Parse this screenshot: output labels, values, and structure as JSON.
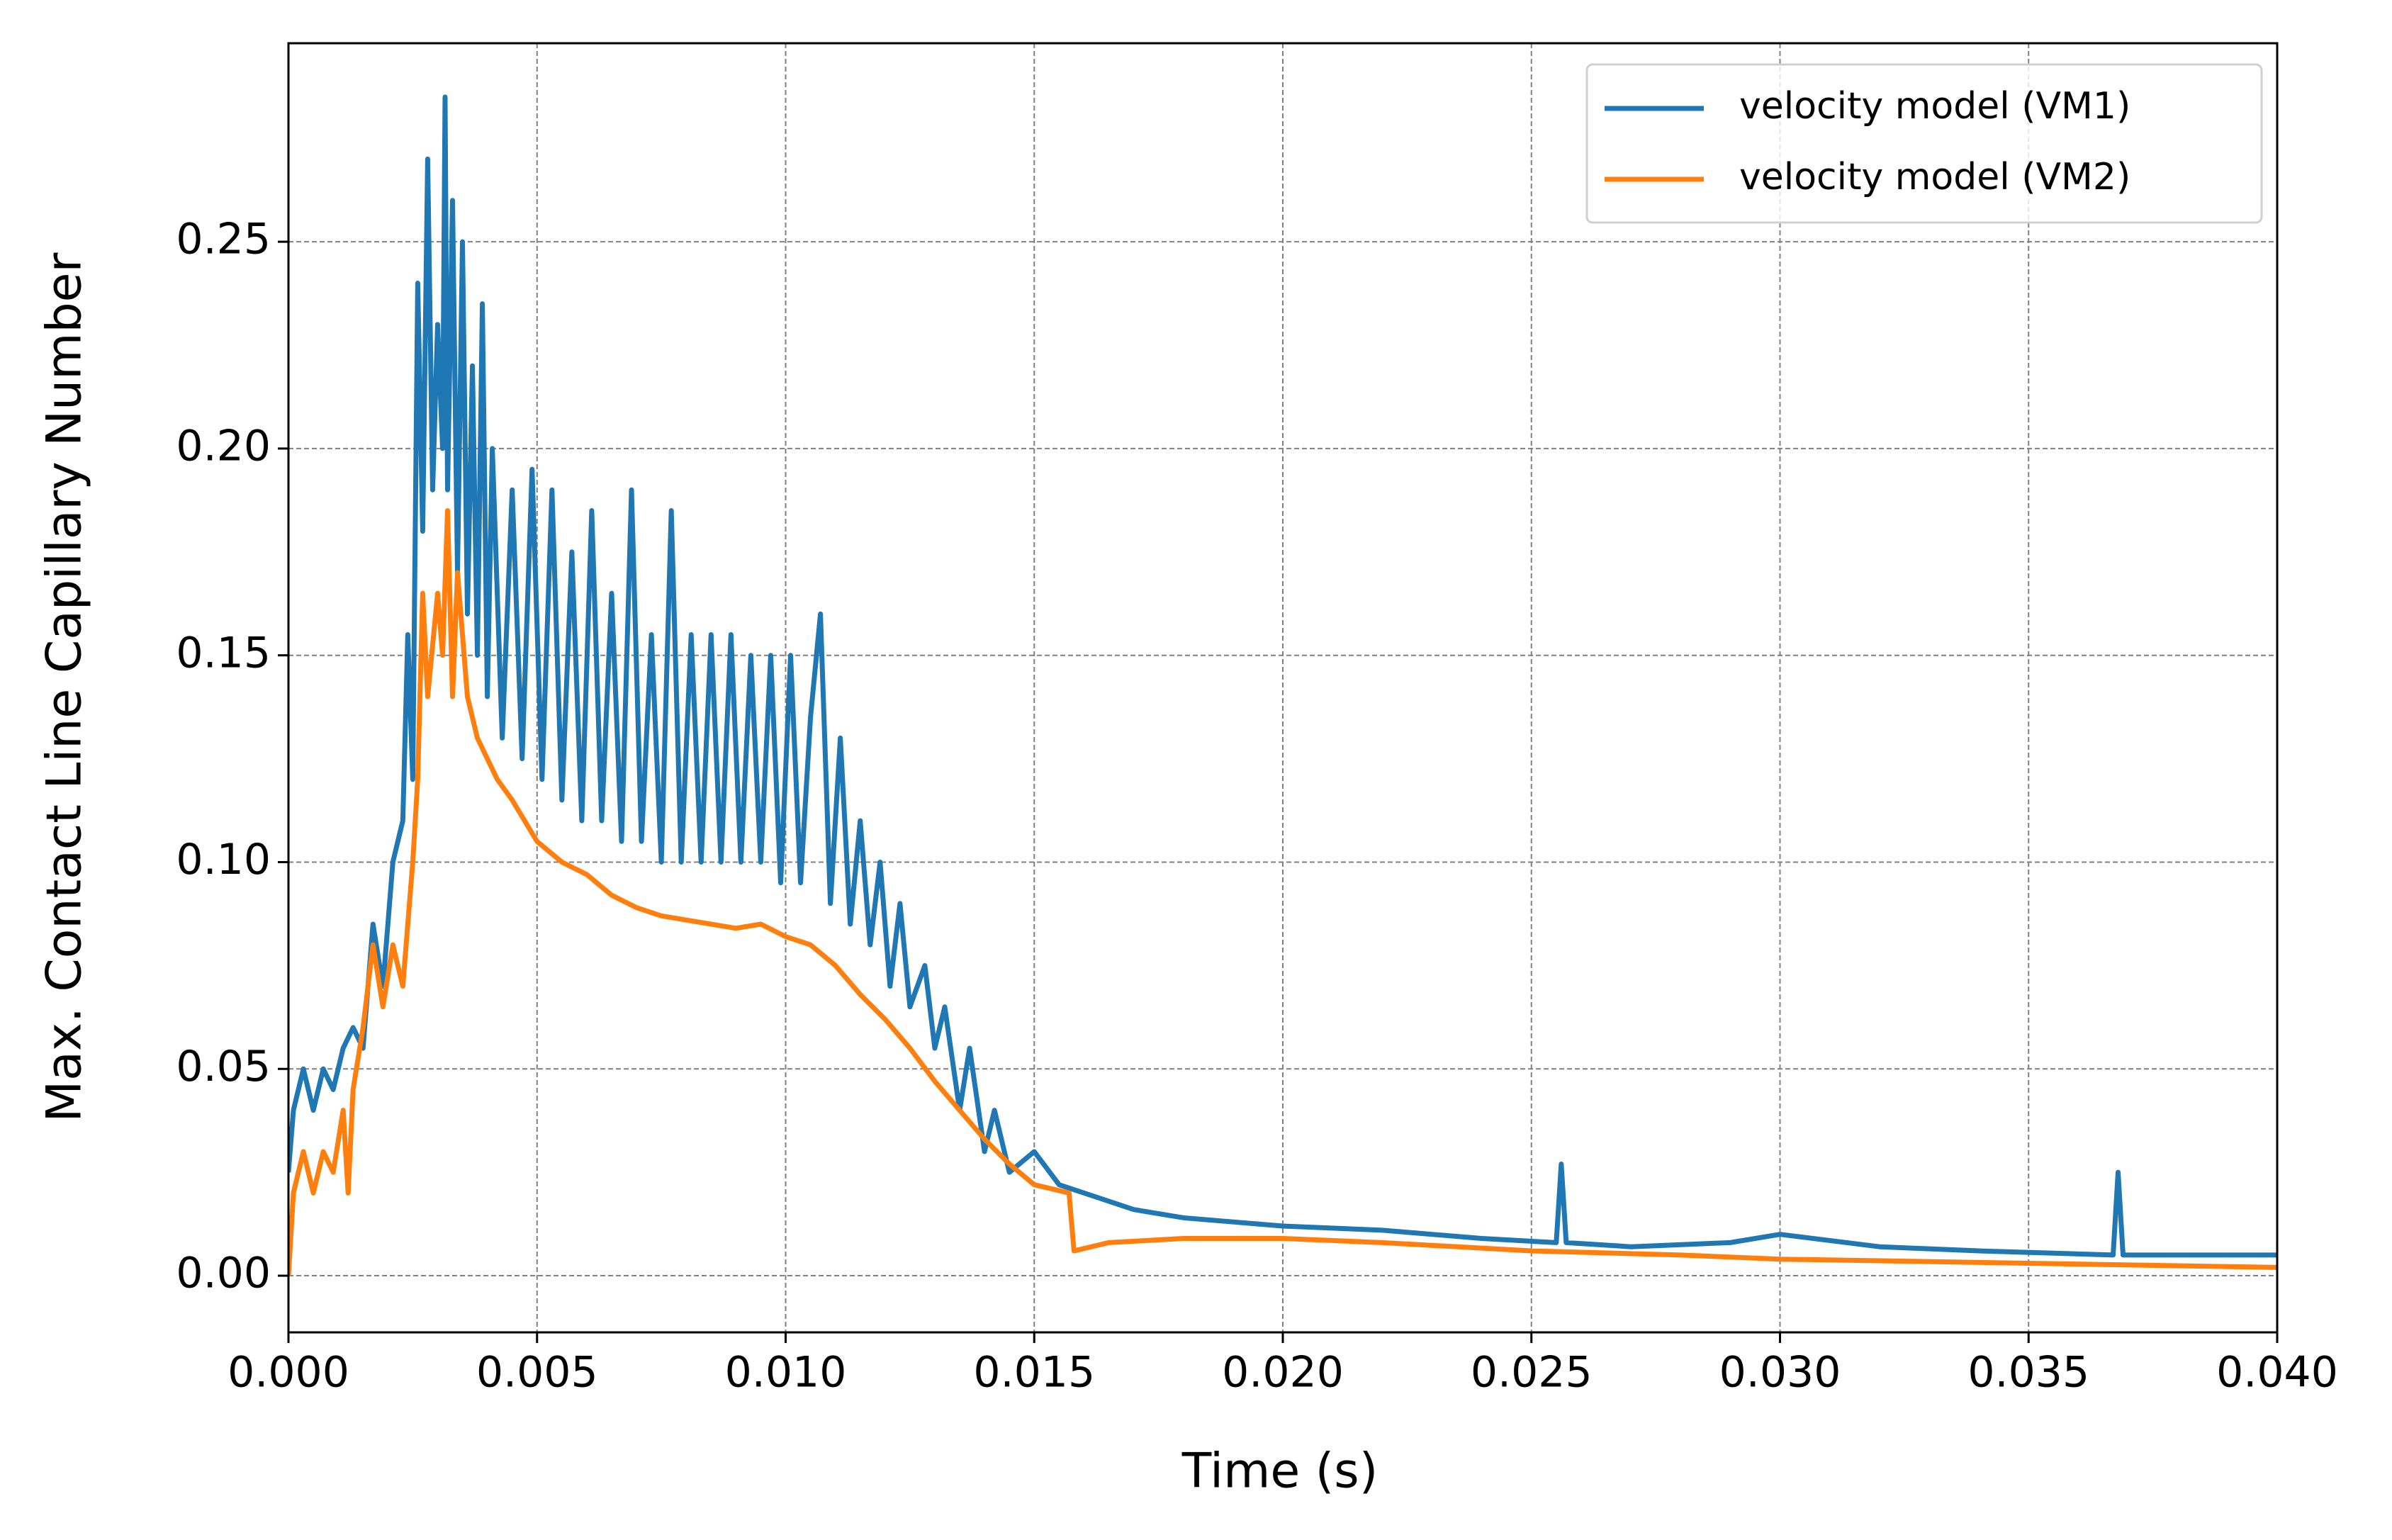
{
  "chart_data": {
    "type": "line",
    "xlabel": "Time (s)",
    "ylabel": "Max. Contact Line Capillary Number",
    "xlim": [
      0,
      0.04
    ],
    "ylim": [
      -0.0137,
      0.298
    ],
    "xticks": [
      {
        "value": 0,
        "label": "0.000"
      },
      {
        "value": 0.005,
        "label": "0.005"
      },
      {
        "value": 0.01,
        "label": "0.010"
      },
      {
        "value": 0.015,
        "label": "0.015"
      },
      {
        "value": 0.02,
        "label": "0.020"
      },
      {
        "value": 0.025,
        "label": "0.025"
      },
      {
        "value": 0.03,
        "label": "0.030"
      },
      {
        "value": 0.035,
        "label": "0.035"
      },
      {
        "value": 0.04,
        "label": "0.040"
      }
    ],
    "yticks": [
      {
        "value": 0,
        "label": "0.00"
      },
      {
        "value": 0.05,
        "label": "0.05"
      },
      {
        "value": 0.1,
        "label": "0.10"
      },
      {
        "value": 0.15,
        "label": "0.15"
      },
      {
        "value": 0.2,
        "label": "0.20"
      },
      {
        "value": 0.25,
        "label": "0.25"
      }
    ],
    "grid": true,
    "legend": "upper right",
    "series": [
      {
        "name": "velocity model (VM1)",
        "color": "#1f77b4",
        "x": [
          0,
          0.0001,
          0.0003,
          0.0005,
          0.0007,
          0.0009,
          0.0011,
          0.0013,
          0.0015,
          0.0017,
          0.0019,
          0.0021,
          0.0023,
          0.0024,
          0.0025,
          0.0026,
          0.0027,
          0.0028,
          0.0029,
          0.003,
          0.0031,
          0.00315,
          0.0032,
          0.0033,
          0.0034,
          0.0035,
          0.0036,
          0.0037,
          0.0038,
          0.0039,
          0.004,
          0.0041,
          0.0043,
          0.0045,
          0.0047,
          0.0049,
          0.0051,
          0.0053,
          0.0055,
          0.0057,
          0.0059,
          0.0061,
          0.0063,
          0.0065,
          0.0067,
          0.0069,
          0.0071,
          0.0073,
          0.0075,
          0.0077,
          0.0079,
          0.0081,
          0.0083,
          0.0085,
          0.0087,
          0.0089,
          0.0091,
          0.0093,
          0.0095,
          0.0097,
          0.0099,
          0.0101,
          0.0103,
          0.0105,
          0.0107,
          0.0109,
          0.0111,
          0.0113,
          0.0115,
          0.0117,
          0.0119,
          0.0121,
          0.0123,
          0.0125,
          0.0128,
          0.013,
          0.0132,
          0.0135,
          0.0137,
          0.014,
          0.0142,
          0.0145,
          0.015,
          0.0155,
          0.016,
          0.017,
          0.018,
          0.019,
          0.02,
          0.022,
          0.024,
          0.0255,
          0.0256,
          0.0257,
          0.027,
          0.029,
          0.03,
          0.032,
          0.034,
          0.0367,
          0.0368,
          0.0369,
          0.038,
          0.04
        ],
        "values": [
          0.025,
          0.04,
          0.05,
          0.04,
          0.05,
          0.045,
          0.055,
          0.06,
          0.055,
          0.085,
          0.07,
          0.1,
          0.11,
          0.155,
          0.12,
          0.24,
          0.18,
          0.27,
          0.19,
          0.23,
          0.2,
          0.285,
          0.19,
          0.26,
          0.17,
          0.25,
          0.16,
          0.22,
          0.15,
          0.235,
          0.14,
          0.2,
          0.13,
          0.19,
          0.125,
          0.195,
          0.12,
          0.19,
          0.115,
          0.175,
          0.11,
          0.185,
          0.11,
          0.165,
          0.105,
          0.19,
          0.105,
          0.155,
          0.1,
          0.185,
          0.1,
          0.155,
          0.1,
          0.155,
          0.1,
          0.155,
          0.1,
          0.15,
          0.1,
          0.15,
          0.095,
          0.15,
          0.095,
          0.135,
          0.16,
          0.09,
          0.13,
          0.085,
          0.11,
          0.08,
          0.1,
          0.07,
          0.09,
          0.065,
          0.075,
          0.055,
          0.065,
          0.04,
          0.055,
          0.03,
          0.04,
          0.025,
          0.03,
          0.022,
          0.02,
          0.016,
          0.014,
          0.013,
          0.012,
          0.011,
          0.009,
          0.008,
          0.027,
          0.008,
          0.007,
          0.008,
          0.01,
          0.007,
          0.006,
          0.005,
          0.025,
          0.005,
          0.005,
          0.005
        ]
      },
      {
        "name": "velocity model (VM2)",
        "color": "#ff7f0e",
        "x": [
          0,
          0.0001,
          0.0003,
          0.0005,
          0.0007,
          0.0009,
          0.0011,
          0.0012,
          0.0013,
          0.0015,
          0.0017,
          0.0019,
          0.0021,
          0.0023,
          0.0025,
          0.0026,
          0.0027,
          0.0028,
          0.003,
          0.0031,
          0.0032,
          0.0033,
          0.0034,
          0.0036,
          0.0038,
          0.004,
          0.0042,
          0.0045,
          0.005,
          0.0055,
          0.006,
          0.0065,
          0.007,
          0.0075,
          0.008,
          0.0085,
          0.009,
          0.0095,
          0.01,
          0.0105,
          0.011,
          0.0115,
          0.012,
          0.0125,
          0.013,
          0.0135,
          0.014,
          0.0145,
          0.015,
          0.0157,
          0.0158,
          0.0165,
          0.018,
          0.02,
          0.022,
          0.025,
          0.028,
          0.03,
          0.035,
          0.04
        ],
        "values": [
          0,
          0.02,
          0.03,
          0.02,
          0.03,
          0.025,
          0.04,
          0.02,
          0.045,
          0.06,
          0.08,
          0.065,
          0.08,
          0.07,
          0.1,
          0.12,
          0.165,
          0.14,
          0.165,
          0.15,
          0.185,
          0.14,
          0.17,
          0.14,
          0.13,
          0.125,
          0.12,
          0.115,
          0.105,
          0.1,
          0.097,
          0.092,
          0.089,
          0.087,
          0.086,
          0.085,
          0.084,
          0.085,
          0.082,
          0.08,
          0.075,
          0.068,
          0.062,
          0.055,
          0.047,
          0.04,
          0.033,
          0.027,
          0.022,
          0.02,
          0.006,
          0.008,
          0.009,
          0.009,
          0.008,
          0.006,
          0.005,
          0.004,
          0.003,
          0.002
        ]
      }
    ]
  }
}
